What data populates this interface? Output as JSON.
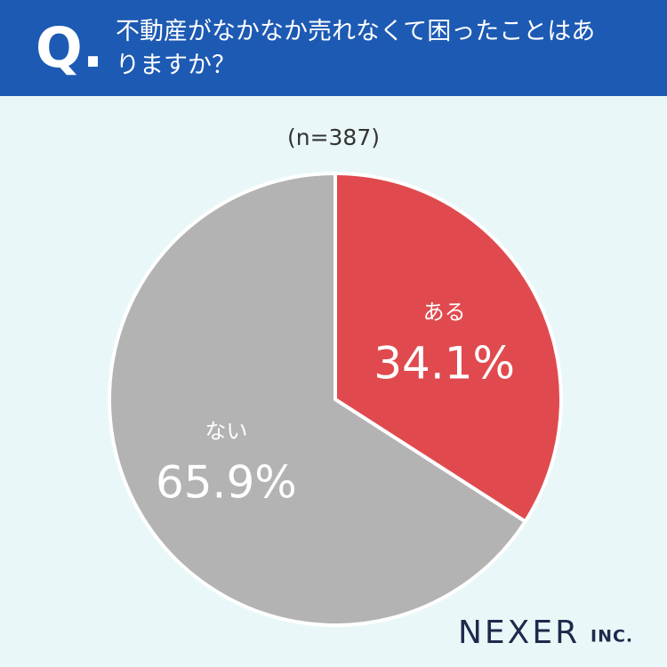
{
  "chart_data": {
    "type": "pie",
    "question_label": "Q.",
    "title": "不動産がなかなか売れなくて困ったことはありますか？",
    "subtitle": "(n=387)",
    "categories": [
      "ある",
      "ない"
    ],
    "values": [
      34.1,
      65.9
    ],
    "value_labels": [
      "34.1%",
      "65.9%"
    ],
    "colors": [
      "#e04a4e",
      "#b3b3b3"
    ]
  },
  "brand": {
    "name": "NEXER",
    "suffix": "INC."
  }
}
